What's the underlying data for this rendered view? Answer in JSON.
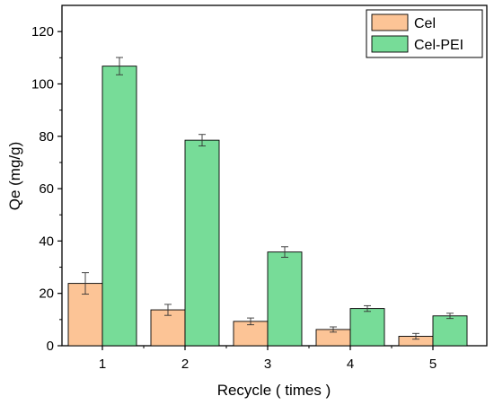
{
  "chart_data": {
    "type": "bar",
    "title": "",
    "xlabel": "Recycle ( times )",
    "ylabel": "Qe (mg/g)",
    "categories": [
      "1",
      "2",
      "3",
      "4",
      "5"
    ],
    "ylim": [
      0,
      130
    ],
    "yticks": [
      0,
      20,
      40,
      60,
      80,
      100,
      120
    ],
    "grid": false,
    "legend_position": "top-right",
    "series": [
      {
        "name": "Cel",
        "color": "#fcc496",
        "values": [
          23.8,
          13.7,
          9.3,
          6.2,
          3.6
        ],
        "errors": [
          4.1,
          2.1,
          1.3,
          1.0,
          1.1
        ]
      },
      {
        "name": "Cel-PEI",
        "color": "#77dc98",
        "values": [
          106.8,
          78.5,
          35.8,
          14.2,
          11.4
        ],
        "errors": [
          3.3,
          2.2,
          2.0,
          1.1,
          1.0
        ]
      }
    ]
  }
}
